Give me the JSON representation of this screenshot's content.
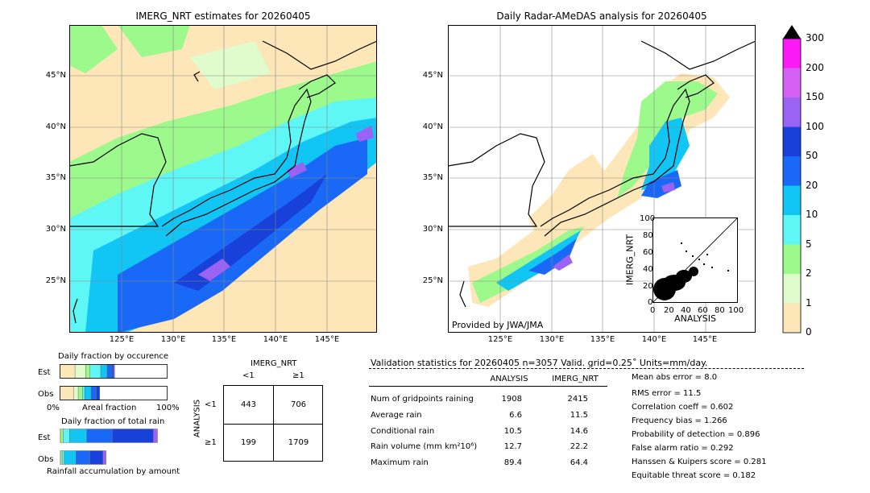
{
  "titles": {
    "left_map": "IMERG_NRT estimates for 20260405",
    "right_map": "Daily Radar-AMeDAS analysis for 20260405"
  },
  "map_axes": {
    "lon_labels": [
      "125°E",
      "130°E",
      "135°E",
      "140°E",
      "145°E"
    ],
    "lat_labels": [
      "45°N",
      "40°N",
      "35°N",
      "30°N",
      "25°N"
    ]
  },
  "provided_by": "Provided by JWA/JMA",
  "colorbar": {
    "levels": [
      "0",
      "1",
      "2",
      "5",
      "10",
      "20",
      "50",
      "100",
      "150",
      "200",
      "300"
    ],
    "colors": [
      "#fde6b8",
      "#e0fbcc",
      "#9cf98c",
      "#5ff6f6",
      "#11c5f5",
      "#1a68f6",
      "#1741d8",
      "#9a63f4",
      "#d65ff4",
      "#fb1af6",
      "#c99a41"
    ],
    "extend_color": "#000000"
  },
  "inset_scatter": {
    "xlabel": "ANALYSIS",
    "ylabel": "IMERG_NRT",
    "ticks": [
      "0",
      "20",
      "40",
      "60",
      "80",
      "100"
    ]
  },
  "occurrence": {
    "title": "Daily fraction by occurence",
    "row_est": "Est",
    "row_obs": "Obs",
    "axis_left": "0%",
    "axis_mid": "Areal fraction",
    "axis_right": "100%",
    "est_fractions": [
      0.14,
      0.1,
      0.04,
      0.1,
      0.06,
      0.05,
      0.01,
      0.01,
      0.0,
      0.0,
      0.0
    ],
    "obs_fractions": [
      0.13,
      0.04,
      0.04,
      0.02,
      0.06,
      0.05,
      0.03,
      0.0,
      0.0,
      0.0,
      0.0
    ]
  },
  "total_rain": {
    "title": "Daily fraction of total rain",
    "row_est": "Est",
    "row_obs": "Obs",
    "axis_label": "Rainfall accumulation by amount",
    "est_fractions": [
      0.0,
      0.01,
      0.02,
      0.06,
      0.16,
      0.24,
      0.38,
      0.04,
      0.0,
      0.0,
      0.0
    ],
    "obs_fractions": [
      0.0,
      0.01,
      0.01,
      0.02,
      0.11,
      0.13,
      0.12,
      0.03,
      0.0,
      0.0,
      0.0
    ]
  },
  "contingency": {
    "col_header": "IMERG_NRT",
    "col_lt": "<1",
    "col_ge": "≥1",
    "row_header": "ANALYSIS",
    "row_lt": "<1",
    "row_ge": "≥1",
    "a": "443",
    "b": "706",
    "c": "199",
    "d": "1709"
  },
  "validation": {
    "header": "Validation statistics for 20260405  n=3057 Valid. grid=0.25˚ Units=mm/day.",
    "col_analysis": "ANALYSIS",
    "col_imerg": "IMERG_NRT",
    "rows": [
      {
        "label": "Num of gridpoints raining",
        "analysis": "1908",
        "imerg": "2415"
      },
      {
        "label": "Average rain",
        "analysis": "6.6",
        "imerg": "11.5"
      },
      {
        "label": "Conditional rain",
        "analysis": "10.5",
        "imerg": "14.6"
      },
      {
        "label": "Rain volume (mm km²10⁶)",
        "analysis": "12.7",
        "imerg": "22.2"
      },
      {
        "label": "Maximum rain",
        "analysis": "89.4",
        "imerg": "64.4"
      }
    ],
    "scores": [
      "Mean abs error =    8.0",
      "RMS error =   11.5",
      "Correlation coeff =  0.602",
      "Frequency bias =  1.266",
      "Probability of detection =  0.896",
      "False alarm ratio =  0.292",
      "Hanssen & Kuipers score =  0.281",
      "Equitable threat score =  0.182"
    ]
  }
}
